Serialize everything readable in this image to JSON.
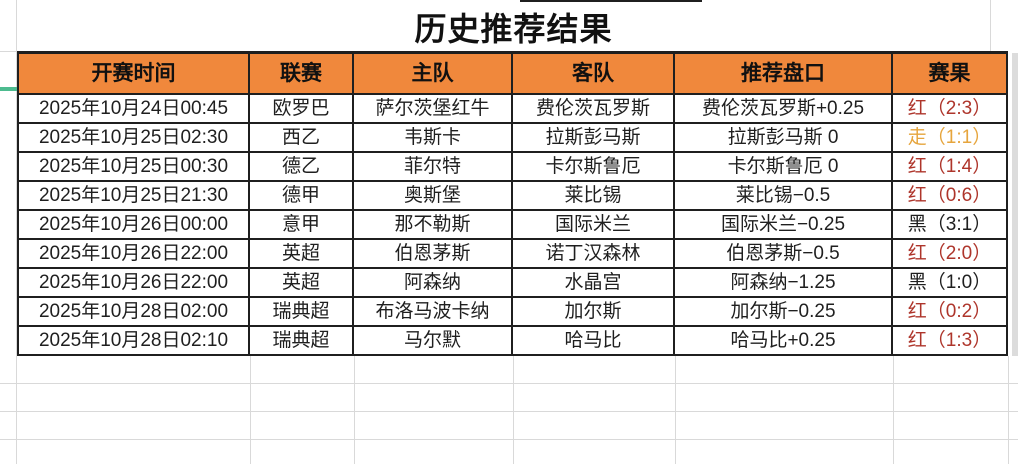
{
  "title": "历史推荐结果",
  "table": {
    "headers": [
      "开赛时间",
      "联赛",
      "主队",
      "客队",
      "推荐盘口",
      "赛果"
    ],
    "rows": [
      {
        "time": "2025年10月24日00:45",
        "league": "欧罗巴",
        "home": "萨尔茨堡红牛",
        "away": "费伦茨瓦罗斯",
        "handicap": "费伦茨瓦罗斯+0.25",
        "result": "红（2:3）",
        "status": "win"
      },
      {
        "time": "2025年10月25日02:30",
        "league": "西乙",
        "home": "韦斯卡",
        "away": "拉斯彭马斯",
        "handicap": "拉斯彭马斯 0",
        "result": "走（1:1）",
        "status": "push"
      },
      {
        "time": "2025年10月25日00:30",
        "league": "德乙",
        "home": "菲尔特",
        "away": "卡尔斯鲁厄",
        "handicap": "卡尔斯鲁厄 0",
        "result": "红（1:4）",
        "status": "win"
      },
      {
        "time": "2025年10月25日21:30",
        "league": "德甲",
        "home": "奥斯堡",
        "away": "莱比锡",
        "handicap": "莱比锡−0.5",
        "result": "红（0:6）",
        "status": "win"
      },
      {
        "time": "2025年10月26日00:00",
        "league": "意甲",
        "home": "那不勒斯",
        "away": "国际米兰",
        "handicap": "国际米兰−0.25",
        "result": "黑（3:1）",
        "status": "loss"
      },
      {
        "time": "2025年10月26日22:00",
        "league": "英超",
        "home": "伯恩茅斯",
        "away": "诺丁汉森林",
        "handicap": "伯恩茅斯−0.5",
        "result": "红（2:0）",
        "status": "win"
      },
      {
        "time": "2025年10月26日22:00",
        "league": "英超",
        "home": "阿森纳",
        "away": "水晶宫",
        "handicap": "阿森纳−1.25",
        "result": "黑（1:0）",
        "status": "loss"
      },
      {
        "time": "2025年10月28日02:00",
        "league": "瑞典超",
        "home": "布洛马波卡纳",
        "away": "加尔斯",
        "handicap": "加尔斯−0.25",
        "result": "红（0:2）",
        "status": "win"
      },
      {
        "time": "2025年10月28日02:10",
        "league": "瑞典超",
        "home": "马尔默",
        "away": "哈马比",
        "handicap": "哈马比+0.25",
        "result": "红（1:3）",
        "status": "win"
      }
    ]
  },
  "colors": {
    "header_orange": "#F0883C",
    "result_win_red": "#AE352B",
    "result_push_orange": "#E6A53D",
    "result_loss_black": "#1F1F1F",
    "accent_green": "#4DBB8F",
    "gridline_gray": "#D9D9D9",
    "border_black": "#1F1F1F"
  }
}
